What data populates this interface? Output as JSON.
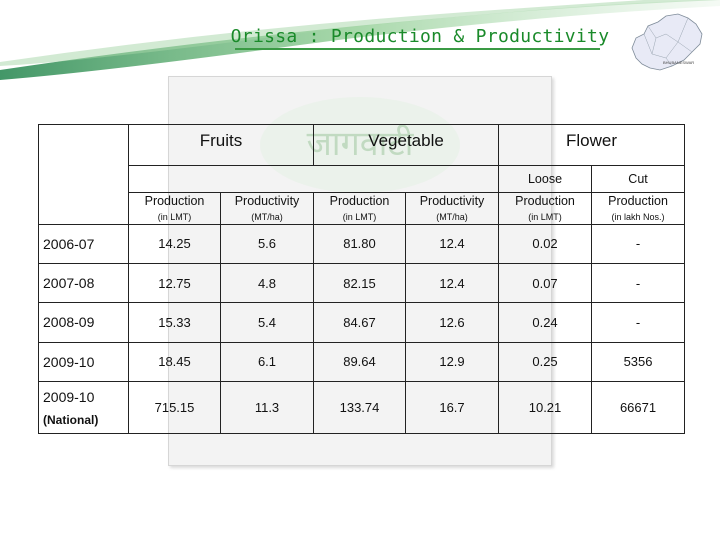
{
  "header": {
    "title": "Orissa : Production & Productivity",
    "map_caption": "BHUBANESWAR"
  },
  "watermark": {
    "text": "जागवाटी"
  },
  "table": {
    "groups": [
      "Fruits",
      "Vegetable",
      "Flower"
    ],
    "flower_sub": [
      "Loose",
      "Cut"
    ],
    "columns": [
      {
        "label": "Production",
        "unit": "(in LMT)"
      },
      {
        "label": "Productivity",
        "unit": "(MT/ha)"
      },
      {
        "label": "Production",
        "unit": "(in LMT)"
      },
      {
        "label": "Productivity",
        "unit": "(MT/ha)"
      },
      {
        "label": "Production",
        "unit": "(in LMT)"
      },
      {
        "label": "Production",
        "unit": "(in lakh Nos.)"
      }
    ],
    "rows": [
      {
        "year": "2006-07",
        "sub": "",
        "values": [
          "14.25",
          "5.6",
          "81.80",
          "12.4",
          "0.02",
          "-"
        ]
      },
      {
        "year": "2007-08",
        "sub": "",
        "values": [
          "12.75",
          "4.8",
          "82.15",
          "12.4",
          "0.07",
          "-"
        ]
      },
      {
        "year": "2008-09",
        "sub": "",
        "values": [
          "15.33",
          "5.4",
          "84.67",
          "12.6",
          "0.24",
          "-"
        ]
      },
      {
        "year": "2009-10",
        "sub": "",
        "values": [
          "18.45",
          "6.1",
          "89.64",
          "12.9",
          "0.25",
          "5356"
        ]
      },
      {
        "year": "2009-10",
        "sub": "(National)",
        "values": [
          "715.15",
          "11.3",
          "133.74",
          "16.7",
          "10.21",
          "66671"
        ]
      }
    ]
  }
}
